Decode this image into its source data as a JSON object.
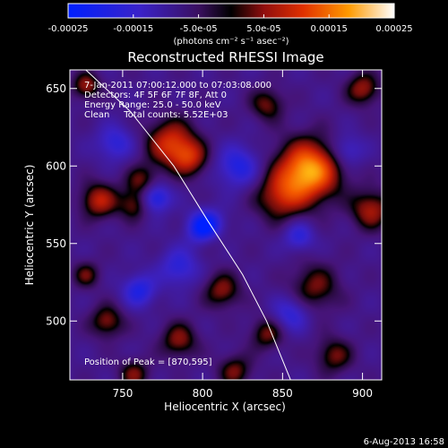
{
  "colorbar": {
    "min": -0.00025,
    "max": 0.00025,
    "tick_labels": [
      "-0.00025",
      "-0.00015",
      "-5.0e-05",
      "5.0e-05",
      "0.00015",
      "0.00025"
    ],
    "units_label": "(photons cm⁻² s⁻¹ asec⁻²)",
    "colors": [
      "#0020ff",
      "#4a1aa0",
      "#000000",
      "#a01010",
      "#e03000",
      "#ff9000",
      "#ffffff"
    ]
  },
  "chart_data": {
    "type": "heatmap",
    "title": "Reconstructed RHESSI Image",
    "xlabel": "Heliocentric X (arcsec)",
    "ylabel": "Heliocentric Y (arcsec)",
    "xlim": [
      717,
      912
    ],
    "ylim": [
      462,
      662
    ],
    "x_ticks": [
      750,
      800,
      850,
      900
    ],
    "y_ticks": [
      500,
      550,
      600,
      650
    ],
    "annotations": [
      "7-Jan-2011 07:00:12.000 to 07:03:08.000",
      "Detectors: 4F 5F 6F 7F 8F, Att 0",
      "Energy Range: 25.0 - 50.0 keV",
      "Clean     Total counts: 5.52E+03"
    ],
    "peak_label": "Position of Peak = [870,595]",
    "peak_position": [
      870,
      595
    ],
    "blobs": [
      {
        "x": 866,
        "y": 597,
        "v": 0.00026,
        "r": 20
      },
      {
        "x": 848,
        "y": 580,
        "v": 0.00012,
        "r": 16
      },
      {
        "x": 780,
        "y": 615,
        "v": 0.00016,
        "r": 16
      },
      {
        "x": 792,
        "y": 605,
        "v": 0.00012,
        "r": 12
      },
      {
        "x": 762,
        "y": 590,
        "v": 0.0001,
        "r": 11
      },
      {
        "x": 735,
        "y": 578,
        "v": 0.00014,
        "r": 12
      },
      {
        "x": 757,
        "y": 575,
        "v": 0.0001,
        "r": 10
      },
      {
        "x": 727,
        "y": 652,
        "v": 0.00012,
        "r": 9
      },
      {
        "x": 900,
        "y": 650,
        "v": 0.00012,
        "r": 11
      },
      {
        "x": 840,
        "y": 640,
        "v": 0.0001,
        "r": 11
      },
      {
        "x": 870,
        "y": 522,
        "v": 0.0001,
        "r": 16
      },
      {
        "x": 905,
        "y": 572,
        "v": 0.00013,
        "r": 13
      },
      {
        "x": 805,
        "y": 555,
        "v": 0.0001,
        "r": 10
      },
      {
        "x": 812,
        "y": 520,
        "v": 0.00011,
        "r": 12
      },
      {
        "x": 785,
        "y": 488,
        "v": 0.00011,
        "r": 12
      },
      {
        "x": 740,
        "y": 500,
        "v": 0.00011,
        "r": 11
      },
      {
        "x": 840,
        "y": 492,
        "v": 0.0001,
        "r": 11
      },
      {
        "x": 882,
        "y": 478,
        "v": 0.0001,
        "r": 12
      },
      {
        "x": 757,
        "y": 466,
        "v": 0.0001,
        "r": 10
      },
      {
        "x": 820,
        "y": 468,
        "v": 0.0001,
        "r": 11
      },
      {
        "x": 727,
        "y": 530,
        "v": 9e-05,
        "r": 9
      },
      {
        "x": 802,
        "y": 560,
        "v": -0.00026,
        "r": 11
      },
      {
        "x": 770,
        "y": 580,
        "v": -0.00015,
        "r": 10
      },
      {
        "x": 745,
        "y": 615,
        "v": -0.0001,
        "r": 12
      },
      {
        "x": 822,
        "y": 600,
        "v": -0.00012,
        "r": 14
      },
      {
        "x": 785,
        "y": 535,
        "v": -0.0001,
        "r": 13
      },
      {
        "x": 860,
        "y": 555,
        "v": -0.0001,
        "r": 10
      },
      {
        "x": 890,
        "y": 610,
        "v": -9e-05,
        "r": 11
      },
      {
        "x": 855,
        "y": 505,
        "v": -0.0001,
        "r": 12
      },
      {
        "x": 760,
        "y": 520,
        "v": -0.00012,
        "r": 11
      }
    ],
    "limb_curve": [
      [
        727,
        662
      ],
      [
        755,
        635
      ],
      [
        782,
        600
      ],
      [
        803,
        565
      ],
      [
        825,
        530
      ],
      [
        840,
        500
      ],
      [
        855,
        462
      ]
    ]
  },
  "footer": {
    "date_stamp": "6-Aug-2013 16:58"
  }
}
